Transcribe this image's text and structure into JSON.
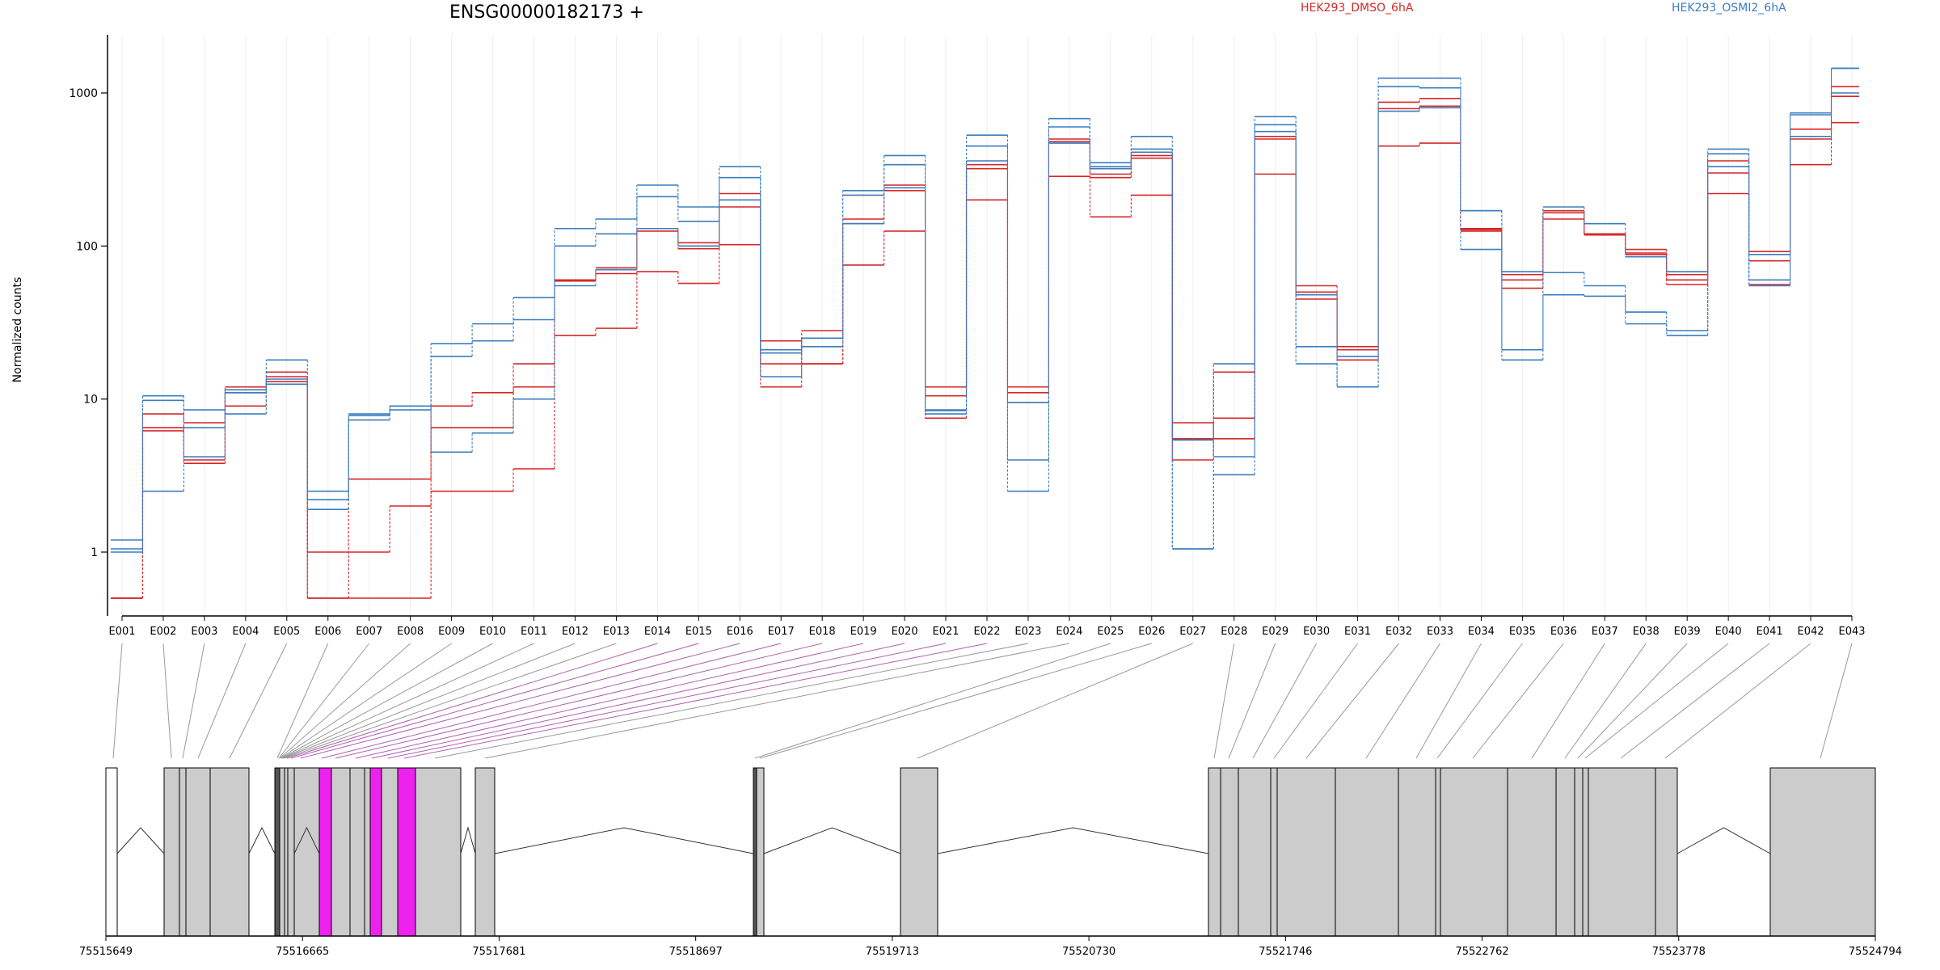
{
  "chart_data": {
    "type": "line",
    "title": "ENSG00000182173 +",
    "ylabel": "Normalized counts",
    "xlabel": "",
    "y_scale": "log",
    "ylim": [
      0.5,
      2000
    ],
    "y_ticks": [
      1,
      10,
      100,
      1000
    ],
    "y_tick_labels": [
      "1",
      "10",
      "100",
      "1000"
    ],
    "grid": "vertical lines at exon bins",
    "legend": [
      {
        "name": "HEK293_DMSO_6hA",
        "color": "#d62728",
        "placement": "top-center"
      },
      {
        "name": "HEK293_OSMI2_6hA",
        "color": "#3a7dbf",
        "placement": "top-right"
      }
    ],
    "categories": [
      "E001",
      "E002",
      "E003",
      "E004",
      "E005",
      "E006",
      "E007",
      "E008",
      "E009",
      "E010",
      "E011",
      "E012",
      "E013",
      "E014",
      "E015",
      "E016",
      "E017",
      "E018",
      "E019",
      "E020",
      "E021",
      "E022",
      "E023",
      "E024",
      "E025",
      "E026",
      "E027",
      "E028",
      "E029",
      "E030",
      "E031",
      "E032",
      "E033",
      "E034",
      "E035",
      "E036",
      "E037",
      "E038",
      "E039",
      "E040",
      "E041",
      "E042",
      "E043"
    ],
    "series": [
      {
        "group": "HEK293_DMSO_6hA",
        "color": "#d62728",
        "values": [
          0.5,
          6.5,
          4.0,
          9.0,
          15.0,
          0.5,
          0.5,
          0.5,
          2.5,
          2.5,
          3.5,
          26,
          29,
          68,
          57,
          102,
          12,
          17,
          75,
          125,
          7.5,
          200,
          9.5,
          285,
          155,
          215,
          4.0,
          7.5,
          295,
          45,
          22,
          450,
          470,
          130,
          53,
          150,
          120,
          88,
          56,
          220,
          56,
          340,
          640
        ]
      },
      {
        "group": "HEK293_DMSO_6hA",
        "color": "#d62728",
        "values": [
          0.5,
          8.0,
          7.0,
          12.0,
          13.0,
          0.5,
          3.0,
          3.0,
          9.0,
          11.0,
          17,
          59,
          66,
          125,
          96,
          180,
          24,
          17,
          140,
          230,
          10.5,
          320,
          12,
          480,
          295,
          375,
          5.5,
          15,
          500,
          50,
          18,
          870,
          920,
          128,
          65,
          165,
          119,
          90,
          65,
          300,
          80,
          500,
          950
        ]
      },
      {
        "group": "HEK293_DMSO_6hA",
        "color": "#d62728",
        "values": [
          0.5,
          6.2,
          3.8,
          11.0,
          14.0,
          1.0,
          1.0,
          2.0,
          6.5,
          6.5,
          12,
          60,
          72,
          130,
          105,
          220,
          17,
          28,
          150,
          250,
          12,
          340,
          11,
          500,
          280,
          390,
          7.0,
          5.5,
          520,
          55,
          21,
          790,
          820,
          125,
          60,
          170,
          118,
          95,
          60,
          360,
          92,
          580,
          1100
        ]
      },
      {
        "group": "HEK293_OSMI2_6hA",
        "color": "#3a7dbf",
        "values": [
          1.05,
          9.8,
          6.5,
          11.0,
          13.5,
          2.2,
          7.3,
          8.5,
          19,
          24,
          33,
          100,
          120,
          210,
          145,
          280,
          21,
          25,
          215,
          340,
          8.5,
          450,
          2.5,
          600,
          330,
          430,
          1.05,
          3.2,
          620,
          22,
          12,
          1100,
          1080,
          170,
          21,
          67,
          55,
          37,
          28,
          400,
          60,
          740,
          1450
        ]
      },
      {
        "group": "HEK293_OSMI2_6hA",
        "color": "#3a7dbf",
        "values": [
          1.2,
          2.5,
          8.5,
          8.0,
          18,
          2.5,
          8.0,
          9.0,
          23,
          31,
          46,
          130,
          150,
          250,
          180,
          330,
          14,
          25,
          230,
          390,
          8.0,
          530,
          4.0,
          680,
          350,
          520,
          1.05,
          17,
          700,
          17,
          12,
          1250,
          1250,
          95,
          18,
          48,
          47,
          31,
          26,
          430,
          55,
          720,
          1450
        ]
      },
      {
        "group": "HEK293_OSMI2_6hA",
        "color": "#3a7dbf",
        "values": [
          1.0,
          10.5,
          4.2,
          11.5,
          12.5,
          1.9,
          7.8,
          9.0,
          4.5,
          6.0,
          10,
          55,
          70,
          130,
          100,
          200,
          20,
          22,
          140,
          240,
          8.4,
          360,
          9.5,
          470,
          320,
          410,
          5.4,
          4.2,
          560,
          48,
          19,
          760,
          800,
          170,
          68,
          180,
          140,
          85,
          68,
          330,
          88,
          520,
          1000
        ]
      }
    ],
    "gene_model": {
      "coordinate_labels": [
        "75515649",
        "75516665",
        "75517681",
        "75518697",
        "75519713",
        "75520730",
        "75521746",
        "75522762",
        "75523778",
        "75524794"
      ],
      "highlighted_exons": [
        "E007",
        "E009",
        "E011"
      ],
      "highlight_color": "#ee22ee",
      "exon_color": "#cccccc"
    }
  }
}
